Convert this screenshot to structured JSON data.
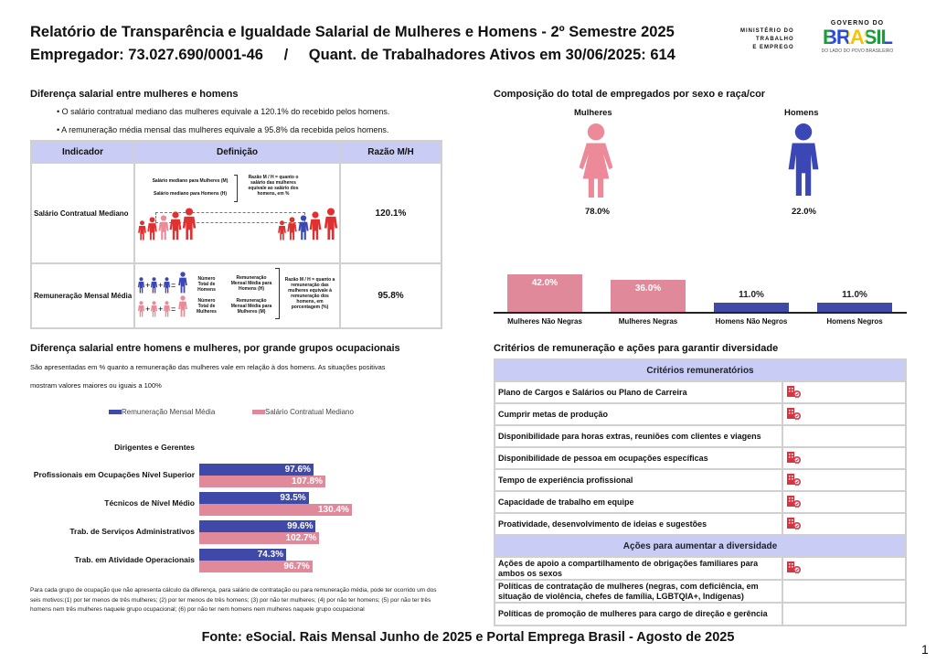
{
  "header": {
    "title": "Relatório de Transparência e Igualdade Salarial de Mulheres e Homens - 2º Semestre 2025",
    "subtitle_employer": "Empregador: 73.027.690/0001-46",
    "separator": "/",
    "subtitle_workers": "Quant. de Trabalhadores Ativos em 30/06/2025: 614",
    "logo_ministry": [
      "MINISTÉRIO DO",
      "TRABALHO",
      "E EMPREGO"
    ],
    "logo_gov_top": "GOVERNO DO",
    "logo_gov_main": "BRASIL",
    "logo_gov_bottom": "DO LADO DO POVO BRASILEIRO"
  },
  "salary_gap": {
    "heading": "Diferença salarial entre mulheres e homens",
    "bullets": [
      "• O salário contratual mediano das mulheres equivale a 120.1% do recebido pelos homens.",
      "• A remuneração média mensal das mulheres equivale a 95.8% da recebida pelos homens."
    ],
    "table": {
      "headers": [
        "Indicador",
        "Definição",
        "Razão M/H"
      ],
      "rows": [
        {
          "indicator": "Salário Contratual Mediano",
          "ratio": "120.1%",
          "def_labels": [
            "Salário mediano para Mulheres (M)",
            "Salário mediano para Homens (H)"
          ],
          "def_note": "Razão M / H = quanto o salário das mulheres equivale ao salário dos homens, em %"
        },
        {
          "indicator": "Remuneração Mensal Média",
          "ratio": "95.8%",
          "def_labels": [
            "Número Total de Homens",
            "Remuneração Mensal Média para Homens (H)",
            "Número Total de Mulheres",
            "Remuneração Mensal Média para Mulheres (M)"
          ],
          "def_note": "Razão M / H = quanto a remuneração das mulheres equivale à remuneração dos homens, em porcentagem (%)"
        }
      ]
    }
  },
  "composition": {
    "heading": "Composição do total de empregados por sexo e raça/cor",
    "women_label": "Mulheres",
    "women_pct": "78.0%",
    "men_label": "Homens",
    "men_pct": "22.0%",
    "colors": {
      "women": "#e0899a",
      "men": "#3f4aa8",
      "women_icon": "#ec8a9a",
      "men_icon": "#3a47b5"
    }
  },
  "occupational": {
    "heading": "Diferença salarial entre homens e mulheres, por grande grupos ocupacionais",
    "description": [
      "São apresentadas em % quanto a remuneração das mulheres vale em relação à dos homens. As situações positivas",
      "mostram valores maiores ou iguais a 100%"
    ],
    "footnote": "Para cada grupo de ocupação que não apresenta cálculo da diferença, para salário de contratação ou para remuneração média, pode ter ocorrido um dos seis motivos:(1) por ter menos de três mulheres; (2) por ter menos de três homens; (3) por não ter mulheres; (4) por não ter homens; (5) por não ter três homens nem três mulheres naquele grupo ocupacional; (6) por não ter nem homens nem mulheres naquele grupo ocupacional"
  },
  "chart_data": [
    {
      "type": "bar",
      "orientation": "horizontal",
      "categories": [
        "Dirigentes e Gerentes",
        "Profissionais em Ocupações Nível Superior",
        "Técnicos de Nível Médio",
        "Trab. de Serviços Administrativos",
        "Trab. em Atividade Operacionais"
      ],
      "series": [
        {
          "name": "Remuneração Mensal Média",
          "color": "#3f4aa8",
          "values": [
            null,
            97.6,
            93.5,
            99.6,
            74.3
          ],
          "labels": [
            "",
            "97.6%",
            "93.5%",
            "99.6%",
            "74.3%"
          ]
        },
        {
          "name": "Salário Contratual Mediano",
          "color": "#e0899a",
          "values": [
            null,
            107.8,
            130.4,
            102.7,
            96.7
          ],
          "labels": [
            "",
            "107.8%",
            "130.4%",
            "102.7%",
            "96.7%"
          ]
        }
      ],
      "legend": "top"
    },
    {
      "type": "bar",
      "categories": [
        "Mulheres Não Negras",
        "Mulheres Negras",
        "Homens Não Negros",
        "Homens Negros"
      ],
      "values": [
        42.0,
        36.0,
        11.0,
        11.0
      ],
      "labels": [
        "42.0%",
        "36.0%",
        "11.0%",
        "11.0%"
      ],
      "colors": [
        "#e0899a",
        "#e0899a",
        "#3f4aa8",
        "#3f4aa8"
      ]
    }
  ],
  "criteria": {
    "heading": "Critérios de remuneração e ações para garantir diversidade",
    "section1": "Critérios remuneratórios",
    "items1": [
      {
        "label": "Plano de Cargos e Salários ou Plano de Carreira",
        "checked": true
      },
      {
        "label": "Cumprir metas de produção",
        "checked": true
      },
      {
        "label": "Disponibilidade para horas extras, reuniões com clientes e viagens",
        "checked": false
      },
      {
        "label": "Disponibilidade de pessoa em ocupações específicas",
        "checked": true
      },
      {
        "label": "Tempo de experiência profissional",
        "checked": true
      },
      {
        "label": "Capacidade de trabalho em equipe",
        "checked": true
      },
      {
        "label": "Proatividade, desenvolvimento de ideias e sugestões",
        "checked": true
      }
    ],
    "section2": "Ações para aumentar a diversidade",
    "items2": [
      {
        "label": "Ações de apoio a compartilhamento de obrigações familiares para ambos os sexos",
        "checked": true
      },
      {
        "label": "Políticas de contratação de mulheres (negras, com deficiência, em situação de violência, chefes de família, LGBTQIA+, Indígenas)",
        "checked": false
      },
      {
        "label": "Políticas de promoção de mulheres para cargo de direção e gerência",
        "checked": false
      }
    ],
    "icon": "company-check-icon",
    "icon_color": "#d9333f"
  },
  "footer": {
    "source": "Fonte: eSocial. Rais Mensal Junho de 2025 e Portal Emprega Brasil - Agosto de 2025",
    "page": "1"
  }
}
